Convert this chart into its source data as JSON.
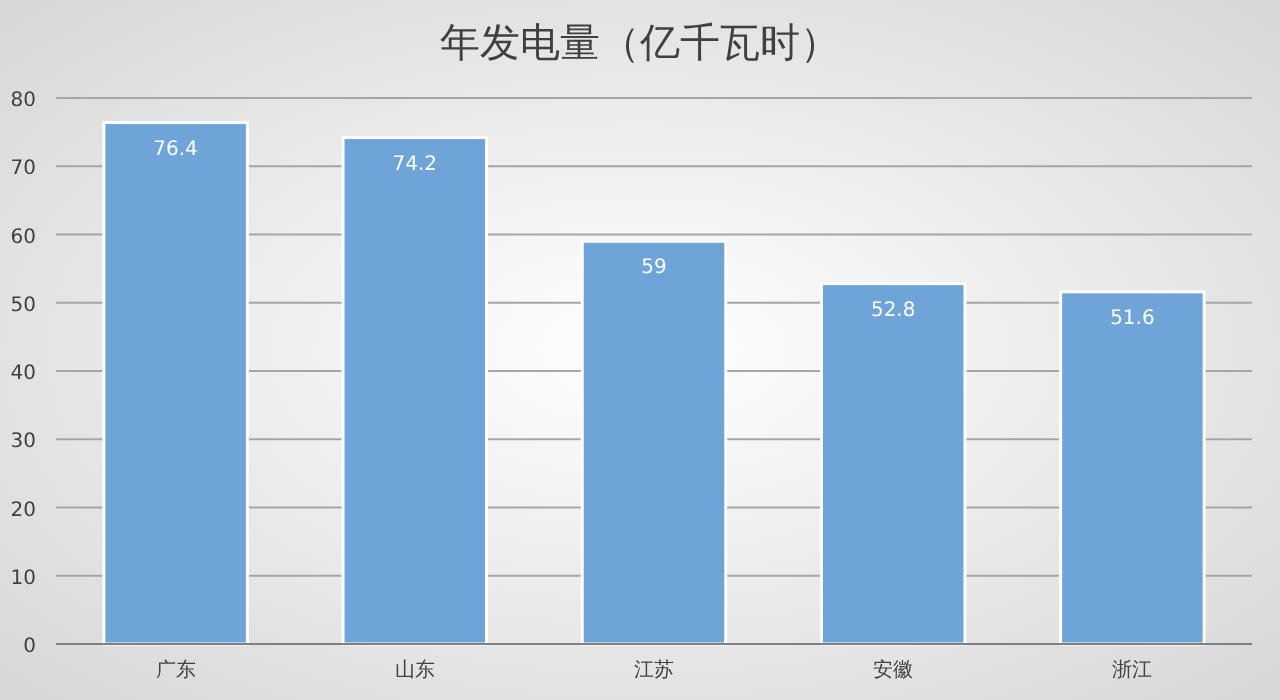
{
  "chart_data": {
    "type": "bar",
    "title": "年发电量（亿千瓦时）",
    "categories": [
      "广东",
      "山东",
      "江苏",
      "安徽",
      "浙江"
    ],
    "values": [
      76.4,
      74.2,
      59,
      52.8,
      51.6
    ],
    "color": "#6fa4d9",
    "ylim": [
      0,
      80
    ],
    "yticks": [
      0,
      10,
      20,
      30,
      40,
      50,
      60,
      70,
      80
    ],
    "grid": "y",
    "data_labels": true
  }
}
